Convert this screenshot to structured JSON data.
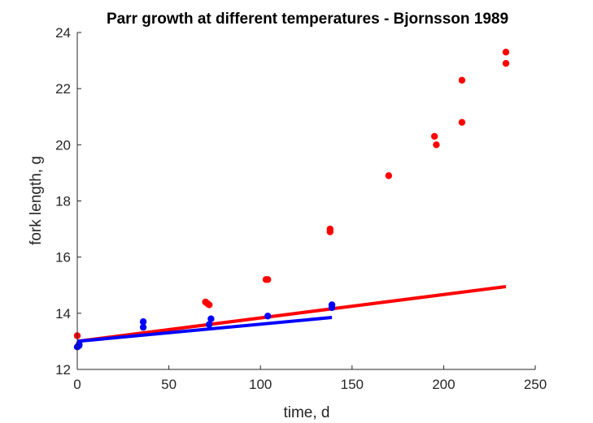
{
  "chart_data": {
    "type": "scatter",
    "title": "Parr growth at different temperatures - Bjornsson 1989",
    "xlabel": "time, d",
    "ylabel": "fork length, g",
    "xlim": [
      0,
      250
    ],
    "ylim": [
      12,
      24
    ],
    "xticks": [
      0,
      50,
      100,
      150,
      200,
      250
    ],
    "yticks": [
      12,
      14,
      16,
      18,
      20,
      22,
      24
    ],
    "grid": false,
    "series": [
      {
        "color": "#ff0000",
        "kind": "points",
        "points": [
          [
            0,
            13.2
          ],
          [
            70,
            14.4
          ],
          [
            71,
            14.35
          ],
          [
            72,
            14.3
          ],
          [
            103,
            15.2
          ],
          [
            104,
            15.2
          ],
          [
            138,
            17.0
          ],
          [
            138,
            16.9
          ],
          [
            170,
            18.9
          ],
          [
            195,
            20.3
          ],
          [
            196,
            20.0
          ],
          [
            210,
            22.3
          ],
          [
            210,
            20.8
          ],
          [
            234,
            23.3
          ],
          [
            234,
            22.9
          ]
        ]
      },
      {
        "color": "#0000ff",
        "kind": "points",
        "points": [
          [
            0,
            12.8
          ],
          [
            1,
            12.85
          ],
          [
            1,
            12.9
          ],
          [
            36,
            13.7
          ],
          [
            36,
            13.5
          ],
          [
            72,
            13.6
          ],
          [
            73,
            13.8
          ],
          [
            104,
            13.9
          ],
          [
            139,
            14.3
          ],
          [
            139,
            14.2
          ]
        ]
      },
      {
        "color": "#ff0000",
        "kind": "line",
        "points": [
          [
            0,
            13.0
          ],
          [
            234,
            14.95
          ]
        ]
      },
      {
        "color": "#0000ff",
        "kind": "line",
        "points": [
          [
            0,
            13.0
          ],
          [
            139,
            13.85
          ]
        ]
      }
    ]
  }
}
